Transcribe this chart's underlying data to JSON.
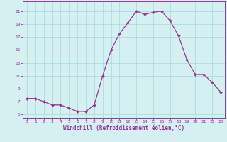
{
  "x": [
    0,
    1,
    2,
    3,
    4,
    5,
    6,
    7,
    8,
    9,
    10,
    11,
    12,
    13,
    14,
    15,
    16,
    17,
    18,
    19,
    20,
    21,
    22,
    23
  ],
  "y": [
    7.5,
    7.5,
    7.0,
    6.5,
    6.5,
    6.0,
    5.5,
    5.5,
    6.5,
    11.0,
    15.0,
    17.5,
    19.2,
    21.0,
    20.5,
    20.8,
    21.0,
    19.5,
    17.2,
    13.5,
    11.2,
    11.2,
    10.0,
    8.5
  ],
  "line_color": "#993399",
  "marker_color": "#993399",
  "bg_color": "#d4f0f0",
  "grid_color": "#aadddd",
  "xlabel": "Windchill (Refroidissement éolien,°C)",
  "xlabel_color": "#993399",
  "xlim": [
    -0.5,
    23.5
  ],
  "ylim": [
    4.5,
    22.5
  ],
  "yticks": [
    5,
    7,
    9,
    11,
    13,
    15,
    17,
    19,
    21
  ],
  "xticks": [
    0,
    1,
    2,
    3,
    4,
    5,
    6,
    7,
    8,
    9,
    10,
    11,
    12,
    13,
    14,
    15,
    16,
    17,
    18,
    19,
    20,
    21,
    22,
    23
  ],
  "tick_label_color": "#993399",
  "spine_color": "#993399",
  "figsize": [
    3.2,
    2.0
  ],
  "dpi": 100
}
